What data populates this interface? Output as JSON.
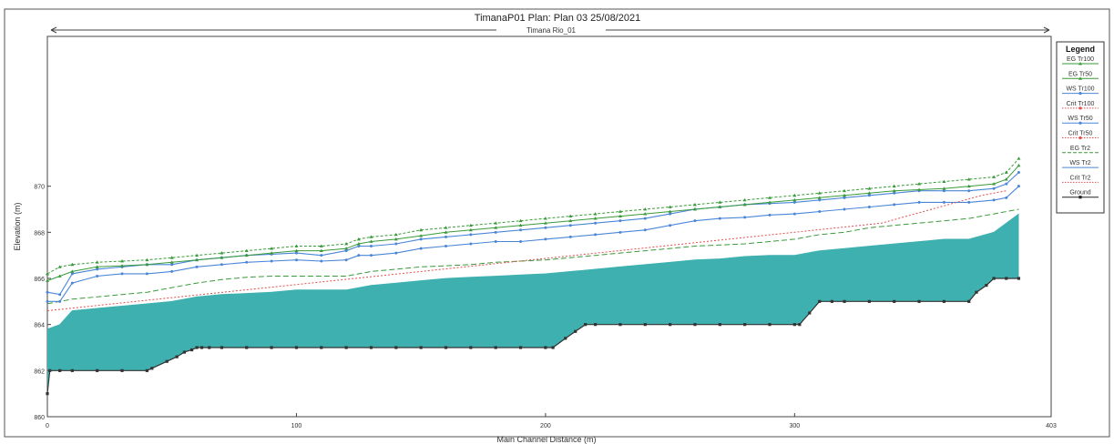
{
  "title": "TimanaP01      Plan: Plan 03    25/08/2021",
  "chart_data": {
    "type": "line",
    "reach_label": "Timana Rio_01",
    "xlabel": "Main Channel Distance (m)",
    "ylabel": "Elevation (m)",
    "xlim": [
      0,
      403
    ],
    "ylim": [
      860,
      876.5
    ],
    "x_ticks": [
      {
        "value": 0,
        "label": "0"
      },
      {
        "value": 100,
        "label": "100"
      },
      {
        "value": 200,
        "label": "200"
      },
      {
        "value": 300,
        "label": "300"
      },
      {
        "value": 403,
        "label": "403"
      }
    ],
    "y_ticks": [
      {
        "value": 860,
        "label": "860"
      },
      {
        "value": 862,
        "label": "862"
      },
      {
        "value": 864,
        "label": "864"
      },
      {
        "value": 866,
        "label": "866"
      },
      {
        "value": 868,
        "label": "868"
      },
      {
        "value": 870,
        "label": "870"
      }
    ],
    "legend": {
      "title": "Legend",
      "position": "right",
      "entries": [
        {
          "label": "EG  Tr100",
          "color": "#3a9a3a",
          "dash": "solid",
          "marker": "triangle"
        },
        {
          "label": "EG  Tr50",
          "color": "#3a9a3a",
          "dash": "solid",
          "marker": "triangle"
        },
        {
          "label": "WS  Tr100",
          "color": "#4a86d8",
          "dash": "solid",
          "marker": "circle"
        },
        {
          "label": "Crit  Tr100",
          "color": "#e05050",
          "dash": "dot",
          "marker": "circle"
        },
        {
          "label": "WS  Tr50",
          "color": "#4a86d8",
          "dash": "solid",
          "marker": "circle"
        },
        {
          "label": "Crit  Tr50",
          "color": "#e05050",
          "dash": "dot",
          "marker": "circle"
        },
        {
          "label": "EG  Tr2",
          "color": "#3a9a3a",
          "dash": "dash",
          "marker": "none"
        },
        {
          "label": "WS  Tr2",
          "color": "#4a86d8",
          "dash": "solid",
          "marker": "none"
        },
        {
          "label": "Crit  Tr2",
          "color": "#e05050",
          "dash": "dot",
          "marker": "none"
        },
        {
          "label": "Ground",
          "color": "#222222",
          "dash": "solid",
          "marker": "square"
        }
      ]
    },
    "water_surface_fill_color": "#3fb0b0",
    "series": [
      {
        "name": "Ground",
        "color": "#333333",
        "x": [
          0,
          1,
          5,
          10,
          20,
          30,
          40,
          42,
          48,
          52,
          55,
          58,
          60,
          62,
          65,
          70,
          80,
          90,
          100,
          110,
          120,
          130,
          140,
          150,
          160,
          170,
          180,
          190,
          200,
          203,
          208,
          212,
          216,
          220,
          230,
          240,
          250,
          260,
          270,
          280,
          290,
          300,
          302,
          306,
          310,
          315,
          320,
          330,
          340,
          350,
          360,
          370,
          373,
          377,
          380,
          385,
          390
        ],
        "values": [
          861.0,
          862.0,
          862.0,
          862.0,
          862.0,
          862.0,
          862.0,
          862.1,
          862.4,
          862.6,
          862.8,
          862.9,
          863.0,
          863.0,
          863.0,
          863.0,
          863.0,
          863.0,
          863.0,
          863.0,
          863.0,
          863.0,
          863.0,
          863.0,
          863.0,
          863.0,
          863.0,
          863.0,
          863.0,
          863.0,
          863.4,
          863.7,
          864.0,
          864.0,
          864.0,
          864.0,
          864.0,
          864.0,
          864.0,
          864.0,
          864.0,
          864.0,
          864.0,
          864.5,
          865.0,
          865.0,
          865.0,
          865.0,
          865.0,
          865.0,
          865.0,
          865.0,
          865.4,
          865.7,
          866.0,
          866.0,
          866.0
        ]
      },
      {
        "name": "WS Tr2",
        "color": "#3fb0b0",
        "x": [
          0,
          5,
          10,
          20,
          30,
          40,
          50,
          60,
          70,
          80,
          90,
          100,
          110,
          120,
          130,
          140,
          150,
          160,
          170,
          180,
          190,
          200,
          210,
          220,
          230,
          240,
          250,
          260,
          270,
          280,
          290,
          300,
          310,
          320,
          330,
          340,
          350,
          360,
          370,
          380,
          390
        ],
        "values": [
          863.8,
          864.0,
          864.6,
          864.7,
          864.8,
          864.9,
          865.0,
          865.2,
          865.3,
          865.35,
          865.4,
          865.5,
          865.5,
          865.5,
          865.7,
          865.8,
          865.9,
          866.0,
          866.05,
          866.1,
          866.15,
          866.2,
          866.3,
          866.4,
          866.5,
          866.6,
          866.7,
          866.8,
          866.85,
          866.95,
          867.0,
          867.0,
          867.2,
          867.3,
          867.4,
          867.5,
          867.6,
          867.7,
          867.7,
          868.0,
          868.8
        ]
      },
      {
        "name": "EG Tr2",
        "color": "#3a9a3a",
        "x": [
          0,
          5,
          10,
          20,
          30,
          40,
          50,
          60,
          70,
          80,
          90,
          100,
          110,
          120,
          130,
          140,
          150,
          160,
          170,
          180,
          190,
          200,
          210,
          220,
          230,
          240,
          250,
          260,
          270,
          280,
          290,
          300,
          310,
          320,
          330,
          340,
          350,
          360,
          370,
          380,
          390
        ],
        "values": [
          864.9,
          865.0,
          865.1,
          865.2,
          865.3,
          865.4,
          865.6,
          865.8,
          865.95,
          866.05,
          866.1,
          866.1,
          866.1,
          866.1,
          866.3,
          866.4,
          866.5,
          866.55,
          866.6,
          866.7,
          866.75,
          866.8,
          866.9,
          867.0,
          867.1,
          867.2,
          867.3,
          867.4,
          867.45,
          867.5,
          867.6,
          867.7,
          867.9,
          868.0,
          868.2,
          868.3,
          868.4,
          868.5,
          868.6,
          868.8,
          869.0
        ]
      },
      {
        "name": "WS Tr50",
        "color": "#4a86d8",
        "x": [
          0,
          5,
          10,
          20,
          30,
          40,
          50,
          60,
          70,
          80,
          90,
          100,
          110,
          120,
          125,
          130,
          140,
          150,
          160,
          170,
          180,
          190,
          200,
          210,
          220,
          230,
          240,
          250,
          260,
          270,
          280,
          290,
          300,
          310,
          320,
          330,
          340,
          350,
          360,
          370,
          380,
          385,
          390
        ],
        "values": [
          865.0,
          865.0,
          865.8,
          866.1,
          866.2,
          866.2,
          866.3,
          866.5,
          866.6,
          866.7,
          866.75,
          866.8,
          866.75,
          866.8,
          867.0,
          867.0,
          867.1,
          867.3,
          867.4,
          867.5,
          867.6,
          867.6,
          867.7,
          867.8,
          867.9,
          868.0,
          868.1,
          868.3,
          868.5,
          868.6,
          868.65,
          868.75,
          868.8,
          868.9,
          869.0,
          869.1,
          869.2,
          869.3,
          869.3,
          869.3,
          869.4,
          869.5,
          870.0
        ]
      },
      {
        "name": "WS Tr100",
        "color": "#4a86d8",
        "x": [
          0,
          5,
          10,
          20,
          30,
          40,
          50,
          60,
          70,
          80,
          90,
          100,
          110,
          120,
          125,
          130,
          140,
          150,
          160,
          170,
          180,
          190,
          200,
          210,
          220,
          230,
          240,
          250,
          260,
          270,
          280,
          290,
          300,
          310,
          320,
          330,
          340,
          350,
          360,
          370,
          380,
          385,
          390
        ],
        "values": [
          865.4,
          865.3,
          866.2,
          866.4,
          866.5,
          866.6,
          866.6,
          866.8,
          866.9,
          867.0,
          867.05,
          867.1,
          867.0,
          867.2,
          867.4,
          867.4,
          867.5,
          867.7,
          867.8,
          867.9,
          868.0,
          868.1,
          868.2,
          868.3,
          868.4,
          868.5,
          868.6,
          868.8,
          869.0,
          869.1,
          869.2,
          869.25,
          869.3,
          869.4,
          869.5,
          869.6,
          869.7,
          869.8,
          869.8,
          869.8,
          869.9,
          870.1,
          870.6
        ]
      },
      {
        "name": "EG Tr50",
        "color": "#3a9a3a",
        "x": [
          0,
          5,
          10,
          20,
          30,
          40,
          50,
          60,
          70,
          80,
          90,
          100,
          110,
          120,
          125,
          130,
          140,
          150,
          160,
          170,
          180,
          190,
          200,
          210,
          220,
          230,
          240,
          250,
          260,
          270,
          280,
          290,
          300,
          310,
          320,
          330,
          340,
          350,
          360,
          370,
          380,
          385,
          390
        ],
        "values": [
          865.9,
          866.1,
          866.3,
          866.5,
          866.55,
          866.6,
          866.7,
          866.8,
          866.9,
          867.0,
          867.1,
          867.2,
          867.2,
          867.3,
          867.5,
          867.6,
          867.7,
          867.85,
          868.0,
          868.1,
          868.2,
          868.3,
          868.4,
          868.5,
          868.6,
          868.7,
          868.8,
          868.9,
          869.0,
          869.1,
          869.2,
          869.3,
          869.4,
          869.5,
          869.6,
          869.7,
          869.8,
          869.85,
          869.9,
          870.0,
          870.1,
          870.3,
          870.9
        ]
      },
      {
        "name": "EG Tr100",
        "color": "#3a9a3a",
        "x": [
          0,
          5,
          10,
          20,
          30,
          40,
          50,
          60,
          70,
          80,
          90,
          100,
          110,
          120,
          125,
          130,
          140,
          150,
          160,
          170,
          180,
          190,
          200,
          210,
          220,
          230,
          240,
          250,
          260,
          270,
          280,
          290,
          300,
          310,
          320,
          330,
          340,
          350,
          360,
          370,
          380,
          385,
          390
        ],
        "values": [
          866.2,
          866.5,
          866.6,
          866.7,
          866.75,
          866.8,
          866.9,
          867.0,
          867.1,
          867.2,
          867.3,
          867.4,
          867.4,
          867.5,
          867.7,
          867.8,
          867.9,
          868.1,
          868.2,
          868.3,
          868.4,
          868.5,
          868.6,
          868.7,
          868.8,
          868.9,
          869.0,
          869.1,
          869.2,
          869.3,
          869.4,
          869.5,
          869.6,
          869.7,
          869.8,
          869.9,
          870.0,
          870.1,
          870.2,
          870.3,
          870.4,
          870.6,
          871.2
        ]
      },
      {
        "name": "Crit Tr100",
        "color": "#e05050",
        "x": [
          0,
          335,
          375,
          380,
          385
        ],
        "values": [
          864.6,
          868.4,
          869.6,
          869.7,
          869.8
        ]
      }
    ]
  }
}
